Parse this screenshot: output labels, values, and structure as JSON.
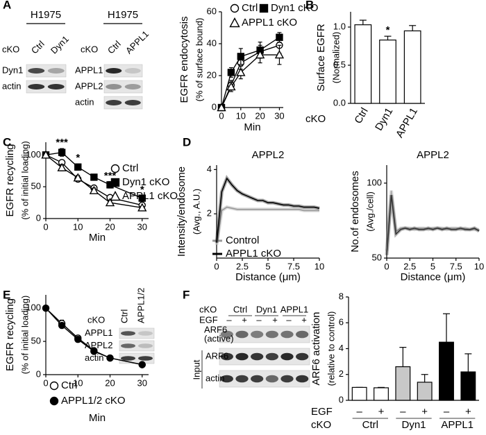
{
  "panels": [
    "A",
    "B",
    "C",
    "D",
    "E",
    "F"
  ],
  "blots": [
    {
      "title": "H1975",
      "cko": "cKO",
      "columns": [
        "Ctrl",
        "Dyn1"
      ],
      "rows": [
        "Dyn1",
        "actin"
      ]
    },
    {
      "title": "H1975",
      "cko": "cKO",
      "columns": [
        "Ctrl",
        "APPL1"
      ],
      "rows": [
        "APPL1",
        "APPL2",
        "actin"
      ]
    },
    {
      "cko": "cKO",
      "columns": [
        "Ctrl",
        "APPL1/2"
      ],
      "rows": [
        "APPL1",
        "APPL2",
        "actin"
      ]
    },
    {
      "cko": "cKO",
      "columns": [
        "Ctrl",
        "Dyn1",
        "APPL1"
      ],
      "egf_label": "EGF",
      "egf": [
        "–",
        "+",
        "–",
        "+",
        "–",
        "+"
      ],
      "rows": [
        "ARF6",
        "ARF6",
        "actin"
      ],
      "row_note": "(active)",
      "input": "Input"
    }
  ],
  "chart_data": [
    {
      "type": "line",
      "ylabel": [
        "EGFR endocytosis",
        "(% of surface bound)"
      ],
      "xlabel": "Min",
      "x": [
        0,
        5,
        10,
        20,
        30
      ],
      "xlim": [
        0,
        32
      ],
      "xticks": [
        0,
        10,
        20,
        30
      ],
      "ylim": [
        0,
        60
      ],
      "yticks": [
        0,
        20,
        40,
        60
      ],
      "series": [
        {
          "name": "Ctrl",
          "color": "#000000",
          "marker": "circle",
          "filled": false,
          "values": [
            0,
            14,
            28,
            35,
            39
          ],
          "errors": [
            1,
            3,
            4,
            4,
            5
          ]
        },
        {
          "name": "Dyn1 cKO",
          "color": "#000000",
          "marker": "square",
          "filled": true,
          "values": [
            0,
            22,
            32,
            36,
            44
          ],
          "errors": [
            1,
            3,
            5,
            5,
            3
          ]
        },
        {
          "name": "APPL1 cKO",
          "color": "#000000",
          "marker": "triangle",
          "filled": false,
          "values": [
            0,
            13,
            22,
            33,
            33
          ],
          "errors": [
            1,
            3,
            4,
            5,
            6
          ]
        }
      ]
    },
    {
      "type": "bar",
      "ylabel": [
        "Surface EGFR",
        "(Normalized)"
      ],
      "category_label": "cKO",
      "categories": [
        "Ctrl",
        "Dyn1",
        "APPL1"
      ],
      "values": [
        1.03,
        0.83,
        0.95
      ],
      "errors": [
        0.06,
        0.05,
        0.07
      ],
      "colors": [
        "#ffffff",
        "#ffffff",
        "#ffffff"
      ],
      "ylim": [
        0,
        1.2
      ],
      "yticks": [
        {
          "value": 0,
          "label": "0.0"
        },
        0.5,
        {
          "value": 1,
          "label": "1.0"
        }
      ],
      "annotations": [
        {
          "x": "Dyn1",
          "text": "*"
        }
      ]
    },
    {
      "type": "line",
      "ylabel": [
        "EGFR recycling",
        "(% of initial loading)"
      ],
      "xlabel": "Min",
      "x": [
        0,
        5,
        10,
        15,
        20,
        30
      ],
      "xlim": [
        0,
        32
      ],
      "xticks": [
        0,
        10,
        20,
        30
      ],
      "ylim": [
        0,
        120
      ],
      "yticks": [
        0,
        50,
        100
      ],
      "series": [
        {
          "name": "Ctrl",
          "color": "#000000",
          "marker": "circle",
          "filled": false,
          "values": [
            100,
            88,
            62,
            48,
            33,
            21
          ],
          "errors": [
            2,
            4,
            3,
            4,
            3,
            2
          ]
        },
        {
          "name": "Dyn1 cKO",
          "color": "#000000",
          "marker": "square",
          "filled": true,
          "values": [
            100,
            104,
            81,
            65,
            53,
            32
          ],
          "errors": [
            3,
            6,
            5,
            4,
            5,
            4
          ]
        },
        {
          "name": "APPL1 cKO",
          "color": "#000000",
          "marker": "triangle",
          "filled": false,
          "values": [
            100,
            80,
            64,
            44,
            25,
            17
          ],
          "errors": [
            3,
            5,
            4,
            4,
            3,
            2
          ]
        }
      ],
      "annotations": [
        {
          "x": 5,
          "text": "***"
        },
        {
          "x": 10,
          "text": "*"
        },
        {
          "x": 20,
          "text": "***"
        },
        {
          "x": 30,
          "text": "*"
        }
      ]
    },
    {
      "type": "line",
      "title": "APPL2",
      "ylabel": [
        "Intensity/endosome",
        "(Avg., A.U.)"
      ],
      "xlabel": "Distance (μm)",
      "x": [
        0,
        0.5,
        1,
        1.5,
        2,
        2.5,
        3,
        3.5,
        4,
        4.5,
        5,
        5.5,
        6,
        6.5,
        7,
        7.5,
        8,
        8.5,
        9,
        9.5,
        10
      ],
      "xlim": [
        0,
        10
      ],
      "xticks": [
        0,
        2.5,
        5,
        7.5,
        10
      ],
      "ylim": [
        0,
        4.2
      ],
      "yticks": [
        2,
        4
      ],
      "series": [
        {
          "name": "Control",
          "color": "#999999",
          "values": [
            0.6,
            2.15,
            2.3,
            2.25,
            2.2,
            2.2,
            2.2,
            2.2,
            2.2,
            2.2,
            2.2,
            2.2,
            2.2,
            2.2,
            2.2,
            2.2,
            2.2,
            2.15,
            2.15,
            2.15,
            2.15
          ]
        },
        {
          "name": "APPL1 cKO",
          "color": "#000000",
          "values": [
            0.7,
            3.0,
            3.6,
            3.3,
            3.05,
            2.9,
            2.8,
            2.7,
            2.6,
            2.6,
            2.5,
            2.5,
            2.45,
            2.4,
            2.4,
            2.35,
            2.35,
            2.3,
            2.3,
            2.3,
            2.25
          ]
        }
      ]
    },
    {
      "type": "line",
      "title": "APPL2",
      "ylabel": [
        "No.of endosomes",
        "(Avg./cell)"
      ],
      "xlabel": "Distance (μm)",
      "x": [
        0,
        0.5,
        1,
        1.5,
        2,
        2.5,
        3,
        3.5,
        4,
        4.5,
        5,
        5.5,
        6,
        6.5,
        7,
        7.5,
        8,
        8.5,
        9,
        9.5,
        10
      ],
      "xlim": [
        0,
        10
      ],
      "xticks": [
        0,
        2.5,
        5,
        7.5,
        10
      ],
      "ylim": [
        50,
        112
      ],
      "yticks": [
        50,
        100
      ],
      "series": [
        {
          "color": "#aaaaaa",
          "values": [
            55,
            95,
            68,
            70,
            70,
            70,
            69,
            70,
            70,
            69,
            70,
            70,
            70,
            69,
            70,
            70,
            69,
            70,
            69,
            69,
            69
          ]
        },
        {
          "color": "#333333",
          "values": [
            52,
            92,
            66,
            69,
            70,
            69,
            70,
            69,
            69,
            70,
            69,
            70,
            69,
            70,
            69,
            69,
            70,
            69,
            69,
            70,
            68
          ]
        }
      ]
    },
    {
      "type": "line",
      "ylabel": [
        "EGFR recycling",
        "(% of initial loading)"
      ],
      "xlabel": "Min",
      "x": [
        0,
        5,
        10,
        15,
        20,
        30
      ],
      "xlim": [
        0,
        32
      ],
      "xticks": [
        0,
        10,
        20,
        30
      ],
      "ylim": [
        0,
        120
      ],
      "yticks": [
        0,
        50,
        100
      ],
      "series": [
        {
          "name": "Ctrl",
          "color": "#000000",
          "marker": "circle",
          "filled": false,
          "values": [
            100,
            77,
            55,
            36,
            25,
            15
          ],
          "errors": [
            2,
            5,
            4,
            3,
            3,
            2
          ]
        },
        {
          "name": "APPL1/2 cKO",
          "color": "#000000",
          "marker": "circle",
          "filled": true,
          "values": [
            100,
            74,
            53,
            35,
            25,
            15
          ],
          "errors": [
            2,
            4,
            4,
            3,
            2,
            2
          ]
        }
      ]
    },
    {
      "type": "bar",
      "ylabel": [
        "ARF6 activation",
        "(relative to control)"
      ],
      "category_label": "EGF",
      "group_label": "cKO",
      "categories": [
        "–",
        "+",
        "–",
        "+",
        "–",
        "+"
      ],
      "groups": [
        "Ctrl",
        "Dyn1",
        "APPL1"
      ],
      "values": [
        1,
        0.97,
        2.6,
        1.4,
        4.5,
        2.2
      ],
      "errors": [
        0,
        0.03,
        1.5,
        0.6,
        2.2,
        1.4
      ],
      "colors": [
        "#ffffff",
        "#ffffff",
        "#c8c8c8",
        "#c8c8c8",
        "#000000",
        "#000000"
      ],
      "ylim": [
        0,
        8
      ],
      "yticks": [
        0,
        2,
        4,
        6,
        8
      ]
    }
  ]
}
